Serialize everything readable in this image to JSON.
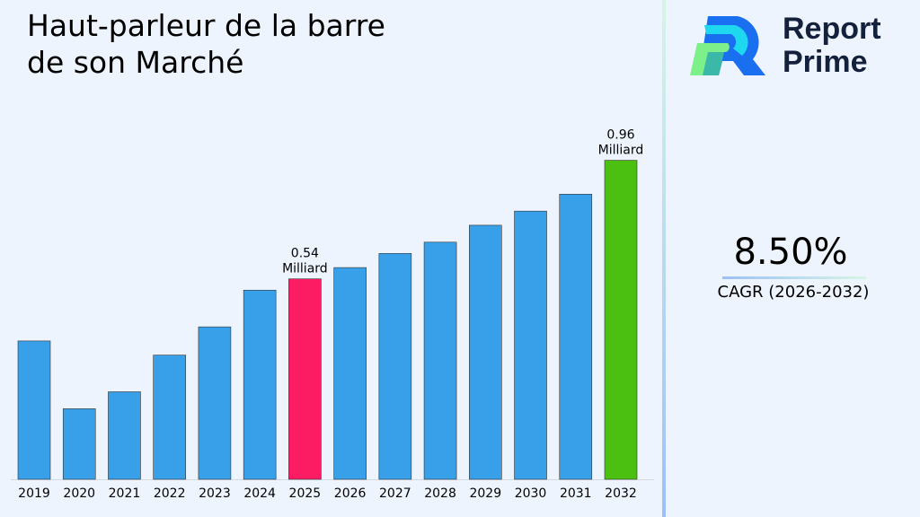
{
  "title": "Haut-parleur de la barre de son Marché",
  "brand": {
    "name_line1": "Report",
    "name_line2": "Prime"
  },
  "cagr": {
    "value": "8.50%",
    "label": "CAGR (2026-2032)"
  },
  "colors": {
    "default_bar": "#38a0e8",
    "highlight_2025": "#fc1c64",
    "highlight_2032": "#4cc010",
    "background": "#eef4fd"
  },
  "chart_data": {
    "type": "bar",
    "categories": [
      "2019",
      "2020",
      "2021",
      "2022",
      "2023",
      "2024",
      "2025",
      "2026",
      "2027",
      "2028",
      "2029",
      "2030",
      "2031",
      "2032"
    ],
    "values": [
      0.32,
      0.08,
      0.14,
      0.27,
      0.37,
      0.5,
      0.54,
      0.58,
      0.63,
      0.67,
      0.73,
      0.78,
      0.84,
      0.96
    ],
    "annotations": [
      {
        "category": "2025",
        "value_text": "0.54",
        "unit_text": "Milliard"
      },
      {
        "category": "2032",
        "value_text": "0.96",
        "unit_text": "Milliard"
      }
    ],
    "ylim": [
      -0.17,
      1.0
    ],
    "grid": false,
    "xlabel": "",
    "ylabel": ""
  }
}
